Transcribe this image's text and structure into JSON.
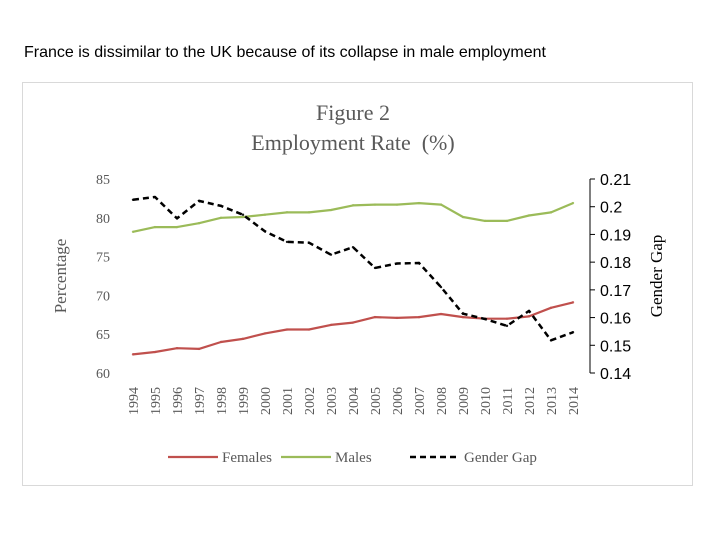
{
  "page": {
    "title": "France is dissimilar to the UK because of its collapse in male employment"
  },
  "chart_data": {
    "type": "line",
    "title": "Figure 2",
    "subtitle": "Employment Rate  (%)",
    "x": [
      "1994",
      "1995",
      "1996",
      "1997",
      "1998",
      "1999",
      "2000",
      "2001",
      "2002",
      "2003",
      "2004",
      "2005",
      "2006",
      "2007",
      "2008",
      "2009",
      "2010",
      "2011",
      "2012",
      "2013",
      "2014"
    ],
    "ylabel": "Percentage",
    "y2label": "Gender Gap",
    "ylim": [
      60,
      85
    ],
    "y_ticks": [
      "60",
      "65",
      "70",
      "75",
      "80",
      "85"
    ],
    "y2lim": [
      0.14,
      0.21
    ],
    "y2_ticks": [
      "0.14",
      "0.15",
      "0.16",
      "0.17",
      "0.18",
      "0.19",
      "0.2",
      "0.21"
    ],
    "grid": false,
    "legend_position": "bottom",
    "series": [
      {
        "name": "Females",
        "axis": "left",
        "color": "#c0504d",
        "dash": "solid",
        "values": [
          62.4,
          62.7,
          63.2,
          63.1,
          64.0,
          64.4,
          65.1,
          65.6,
          65.6,
          66.2,
          66.5,
          67.2,
          67.1,
          67.2,
          67.6,
          67.2,
          67.0,
          67.0,
          67.3,
          68.4,
          69.1
        ]
      },
      {
        "name": "Males",
        "axis": "left",
        "color": "#9bbb59",
        "dash": "solid",
        "values": [
          78.2,
          78.8,
          78.8,
          79.3,
          80.0,
          80.1,
          80.4,
          80.7,
          80.7,
          81.0,
          81.6,
          81.7,
          81.7,
          81.9,
          81.7,
          80.1,
          79.6,
          79.6,
          80.3,
          80.7,
          81.9
        ]
      },
      {
        "name": "Gender Gap",
        "axis": "right",
        "color": "#000000",
        "dash": "dashed",
        "values": [
          0.2025,
          0.2035,
          0.1958,
          0.2021,
          0.2003,
          0.1971,
          0.1911,
          0.1873,
          0.187,
          0.1827,
          0.1854,
          0.1779,
          0.1795,
          0.1797,
          0.171,
          0.1614,
          0.1595,
          0.157,
          0.1624,
          0.1518,
          0.1547
        ]
      }
    ]
  }
}
